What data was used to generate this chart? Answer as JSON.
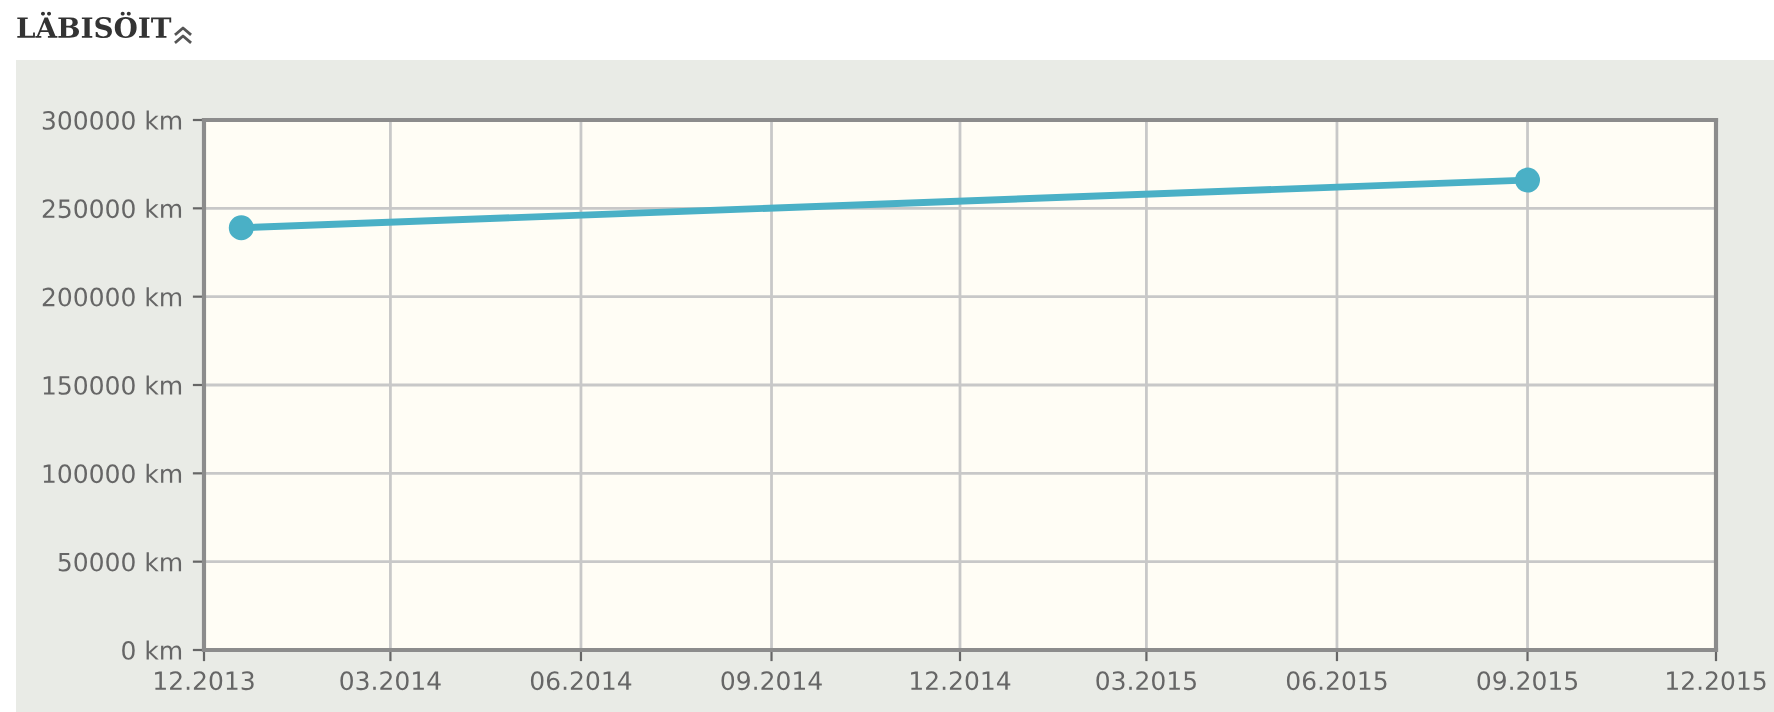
{
  "chart_data": {
    "type": "line",
    "title": "LÄBISÖIT",
    "x": [
      "2013-12-19",
      "2015-09-01"
    ],
    "series": [
      {
        "color": "#4ab0c6",
        "values": [
          239000,
          266000
        ]
      }
    ],
    "xlim": [
      "2013-12-01",
      "2015-12-01"
    ],
    "xticks": [
      {
        "value": "2013-12-01",
        "label": "12.2013"
      },
      {
        "value": "2014-03-01",
        "label": "03.2014"
      },
      {
        "value": "2014-06-01",
        "label": "06.2014"
      },
      {
        "value": "2014-09-01",
        "label": "09.2014"
      },
      {
        "value": "2014-12-01",
        "label": "12.2014"
      },
      {
        "value": "2015-03-01",
        "label": "03.2015"
      },
      {
        "value": "2015-06-01",
        "label": "06.2015"
      },
      {
        "value": "2015-09-01",
        "label": "09.2015"
      },
      {
        "value": "2015-12-01",
        "label": "12.2015"
      }
    ],
    "ylim": [
      0,
      300000
    ],
    "yticks": [
      {
        "value": 0,
        "label": "0 km"
      },
      {
        "value": 50000,
        "label": "50000 km"
      },
      {
        "value": 100000,
        "label": "100000 km"
      },
      {
        "value": 150000,
        "label": "150000 km"
      },
      {
        "value": 200000,
        "label": "200000 km"
      },
      {
        "value": 250000,
        "label": "250000 km"
      },
      {
        "value": 300000,
        "label": "300000 km"
      }
    ],
    "grid": true,
    "marker": "circle",
    "line_style": "solid",
    "legend": false
  }
}
